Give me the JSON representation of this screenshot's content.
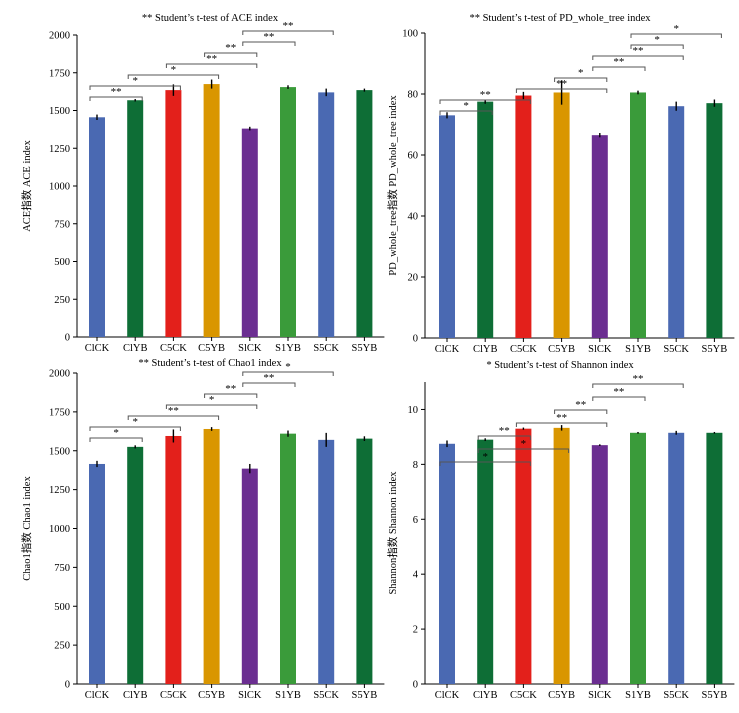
{
  "categories": [
    "ClCK",
    "ClYB",
    "C5CK",
    "C5YB",
    "SlCK",
    "S1YB",
    "S5CK",
    "S5YB"
  ],
  "colors": [
    "#4a69b2",
    "#0e6e36",
    "#e3201b",
    "#d99600",
    "#6b2e91",
    "#3a9b3a",
    "#4a69b2",
    "#0e6e36"
  ],
  "chart_data": [
    {
      "type": "bar",
      "title": "** Student’s t-test of ACE index",
      "ylabel": "ACE指数 ACE index",
      "categories": [
        "ClCK",
        "ClYB",
        "C5CK",
        "C5YB",
        "SlCK",
        "S1YB",
        "S5CK",
        "S5YB"
      ],
      "values": [
        1455,
        1568,
        1635,
        1675,
        1380,
        1655,
        1620,
        1635
      ],
      "errors": [
        18,
        8,
        38,
        30,
        12,
        12,
        25,
        10
      ],
      "ylim": [
        0,
        2000
      ],
      "yticks": [
        0,
        250,
        500,
        750,
        1000,
        1250,
        1500,
        1750,
        2000
      ],
      "significance": [
        {
          "from": 0,
          "to": 1,
          "label": "**"
        },
        {
          "from": 0,
          "to": 2,
          "label": "*"
        },
        {
          "from": 1,
          "to": 3,
          "label": "*"
        },
        {
          "from": 2,
          "to": 4,
          "label": "**"
        },
        {
          "from": 3,
          "to": 4,
          "label": "**"
        },
        {
          "from": 4,
          "to": 5,
          "label": "**"
        },
        {
          "from": 4,
          "to": 6,
          "label": "**"
        }
      ]
    },
    {
      "type": "bar",
      "title": "** Student’s t-test of PD_whole_tree index",
      "ylabel": "PD_whole_tree指数 PD_whole_tree index",
      "categories": [
        "ClCK",
        "ClYB",
        "C5CK",
        "C5YB",
        "SlCK",
        "S1YB",
        "S5CK",
        "S5YB"
      ],
      "values": [
        73,
        77.5,
        79.5,
        80.5,
        66.5,
        80.5,
        76,
        77
      ],
      "errors": [
        1,
        0.7,
        1.2,
        4,
        0.7,
        0.6,
        1.5,
        1.2
      ],
      "ylim": [
        0,
        100
      ],
      "yticks": [
        0,
        20,
        40,
        60,
        80,
        100
      ],
      "significance": [
        {
          "from": 0,
          "to": 1,
          "label": "*"
        },
        {
          "from": 0,
          "to": 2,
          "label": "**"
        },
        {
          "from": 2,
          "to": 4,
          "label": "**"
        },
        {
          "from": 3,
          "to": 4,
          "label": "*"
        },
        {
          "from": 4,
          "to": 5,
          "label": "**"
        },
        {
          "from": 4,
          "to": 6,
          "label": "**"
        },
        {
          "from": 5,
          "to": 6,
          "label": "*"
        },
        {
          "from": 5,
          "to": 7,
          "label": "*"
        }
      ]
    },
    {
      "type": "bar",
      "title": "** Student’s t-test of Chao1 index",
      "ylabel": "Chao1指数 Chao1 index",
      "categories": [
        "ClCK",
        "ClYB",
        "C5CK",
        "C5YB",
        "SlCK",
        "S1YB",
        "S5CK",
        "S5YB"
      ],
      "values": [
        1415,
        1525,
        1595,
        1640,
        1385,
        1610,
        1570,
        1578
      ],
      "errors": [
        20,
        10,
        42,
        12,
        30,
        20,
        45,
        15
      ],
      "ylim": [
        0,
        2000
      ],
      "yticks": [
        0,
        250,
        500,
        750,
        1000,
        1250,
        1500,
        1750,
        2000
      ],
      "significance": [
        {
          "from": 0,
          "to": 1,
          "label": "*"
        },
        {
          "from": 0,
          "to": 2,
          "label": "*"
        },
        {
          "from": 1,
          "to": 3,
          "label": "**"
        },
        {
          "from": 2,
          "to": 4,
          "label": "*"
        },
        {
          "from": 3,
          "to": 4,
          "label": "**"
        },
        {
          "from": 4,
          "to": 5,
          "label": "**"
        },
        {
          "from": 4,
          "to": 6,
          "label": "*"
        }
      ]
    },
    {
      "type": "bar",
      "title": "* Student’s t-test of Shannon index",
      "ylabel": "Shannon指数 Shannon index",
      "categories": [
        "ClCK",
        "ClYB",
        "C5CK",
        "C5YB",
        "SlCK",
        "S1YB",
        "S5CK",
        "S5YB"
      ],
      "values": [
        8.75,
        8.9,
        9.3,
        9.33,
        8.7,
        9.15,
        9.15,
        9.15
      ],
      "errors": [
        0.12,
        0.05,
        0.04,
        0.1,
        0.03,
        0.03,
        0.07,
        0.03
      ],
      "ylim": [
        0,
        11
      ],
      "yticks": [
        0,
        2,
        4,
        6,
        8,
        10
      ],
      "significance": [
        {
          "from": 0,
          "to": 2,
          "label": "*"
        },
        {
          "from": 1,
          "to": 3,
          "label": "*"
        },
        {
          "from": 1,
          "to": 2,
          "label": "**"
        },
        {
          "from": 2,
          "to": 4,
          "label": "**"
        },
        {
          "from": 3,
          "to": 4,
          "label": "**"
        },
        {
          "from": 4,
          "to": 5,
          "label": "**"
        },
        {
          "from": 4,
          "to": 6,
          "label": "**"
        }
      ]
    }
  ]
}
